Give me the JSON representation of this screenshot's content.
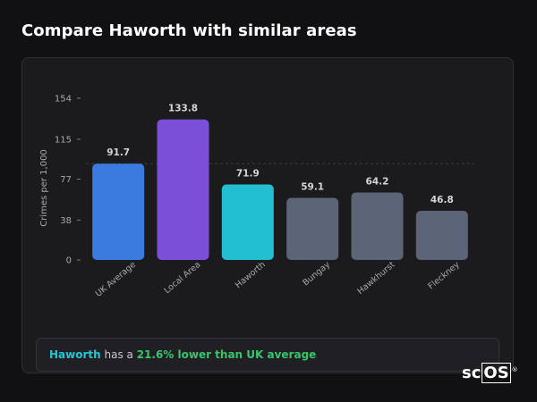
{
  "page": {
    "title": "Compare Haworth with similar areas"
  },
  "chart_data": {
    "type": "bar",
    "ylabel": "Crimes per 1,000",
    "xlabel": "",
    "ylim": [
      0,
      154
    ],
    "yticks": [
      0,
      38,
      77,
      115,
      154
    ],
    "grid": false,
    "categories": [
      "UK Average",
      "Local Area",
      "Haworth",
      "Bungay",
      "Hawkhurst",
      "Fleckney"
    ],
    "values": [
      91.7,
      133.8,
      71.9,
      59.1,
      64.2,
      46.8
    ],
    "value_labels": [
      "91.7",
      "133.8",
      "71.9",
      "59.1",
      "64.2",
      "46.8"
    ],
    "bar_colors": [
      "#3b7be0",
      "#7c4fd9",
      "#22bfd3",
      "#5b6577",
      "#5b6577",
      "#5b6577"
    ],
    "reference_line": {
      "value": 91.7,
      "style": "dashed"
    }
  },
  "summary": {
    "location": "Haworth",
    "middle": " has a ",
    "comparison": "21.6% lower than UK average"
  },
  "logo": {
    "text_a": "sc",
    "text_b": "OS",
    "mark": "®"
  }
}
